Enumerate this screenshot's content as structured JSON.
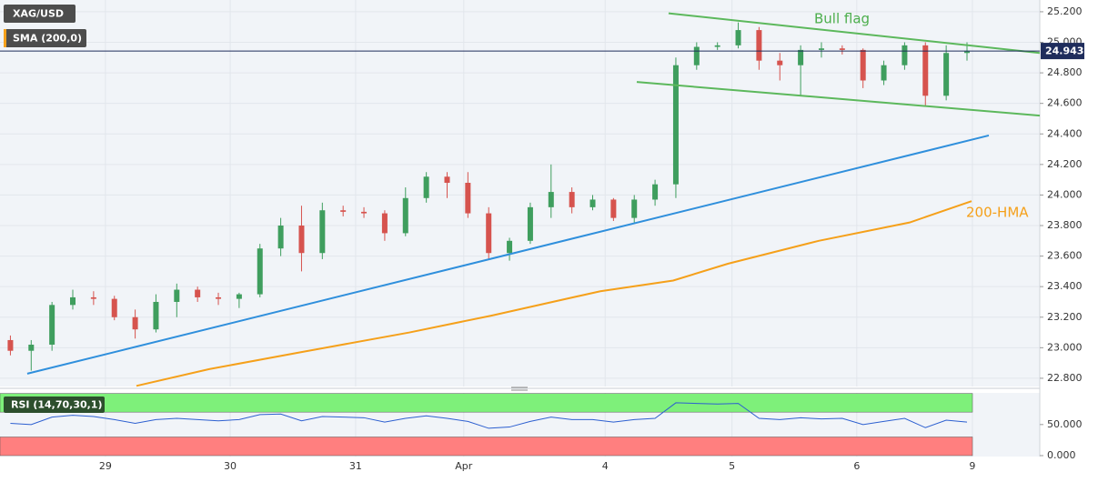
{
  "chart_data": [
    {
      "type": "candlestick",
      "title": "XAG/USD",
      "indicator": "SMA (200,0)",
      "up_color": "#3f9e5e",
      "down_color": "#d6534e",
      "open": [
        23.05,
        22.98,
        23.02,
        23.28,
        23.33,
        23.32,
        23.2,
        23.12,
        23.3,
        23.38,
        23.33,
        23.32,
        23.35,
        23.65,
        23.8,
        23.62,
        23.9,
        23.89,
        23.88,
        23.75,
        23.98,
        24.12,
        24.08,
        23.88,
        23.62,
        23.7,
        23.92,
        24.02,
        23.92,
        23.97,
        23.85,
        23.97,
        24.07,
        24.85,
        24.97,
        24.98,
        25.08,
        24.88,
        24.85,
        24.95,
        24.96,
        24.95,
        24.75,
        24.85,
        24.98,
        24.65,
        24.93
      ],
      "high": [
        23.08,
        23.05,
        23.3,
        23.38,
        23.37,
        23.34,
        23.25,
        23.35,
        23.42,
        23.4,
        23.36,
        23.36,
        23.68,
        23.85,
        23.93,
        23.95,
        23.93,
        23.92,
        23.9,
        24.05,
        24.15,
        24.15,
        24.15,
        23.92,
        23.72,
        23.95,
        24.2,
        24.05,
        24.0,
        23.98,
        24.0,
        24.1,
        24.9,
        25.0,
        25.0,
        25.13,
        25.1,
        24.93,
        24.98,
        25.0,
        24.98,
        24.96,
        24.88,
        25.0,
        25.0,
        24.98,
        25.0
      ],
      "low": [
        22.95,
        22.85,
        22.98,
        23.25,
        23.28,
        23.18,
        23.06,
        23.1,
        23.2,
        23.3,
        23.28,
        23.26,
        23.33,
        23.6,
        23.5,
        23.58,
        23.86,
        23.85,
        23.7,
        23.73,
        23.95,
        23.98,
        23.85,
        23.58,
        23.57,
        23.68,
        23.85,
        23.88,
        23.9,
        23.83,
        23.82,
        23.93,
        23.98,
        24.82,
        24.95,
        24.96,
        24.82,
        24.75,
        24.65,
        24.9,
        24.92,
        24.7,
        24.72,
        24.82,
        24.58,
        24.62,
        24.88
      ],
      "close": [
        22.98,
        23.02,
        23.28,
        23.33,
        23.32,
        23.2,
        23.12,
        23.3,
        23.38,
        23.33,
        23.32,
        23.35,
        23.65,
        23.8,
        23.62,
        23.9,
        23.89,
        23.88,
        23.75,
        23.98,
        24.12,
        24.08,
        23.88,
        23.62,
        23.7,
        23.92,
        24.02,
        23.92,
        23.97,
        23.85,
        23.97,
        24.07,
        24.85,
        24.97,
        24.98,
        25.08,
        24.88,
        24.85,
        24.95,
        24.96,
        24.95,
        24.75,
        24.85,
        24.98,
        24.65,
        24.93,
        24.94
      ],
      "last_price": 24.943,
      "last_color": "#1f2d5c",
      "lines": [
        {
          "x": [
            31.65,
            49.5
          ],
          "y": [
            25.19,
            24.93
          ],
          "color": "#5cb85c"
        },
        {
          "x": [
            30.12,
            49.5
          ],
          "y": [
            24.74,
            24.52
          ],
          "color": "#5cb85c"
        },
        {
          "x": [
            0.81,
            47.05
          ],
          "y": [
            22.83,
            24.39
          ],
          "color": "#2f8fdc"
        },
        {
          "name": "200-HMA",
          "x": [
            6.06,
            9.56,
            13.94,
            19.19,
            23.12,
            28.37,
            31.87,
            34.5,
            38.87,
            43.24,
            46.22
          ],
          "y": [
            22.75,
            22.86,
            22.97,
            23.1,
            23.21,
            23.37,
            23.44,
            23.55,
            23.7,
            23.82,
            23.96
          ],
          "color": "#f5a01a"
        }
      ],
      "annotation": "Bull flag",
      "xlim": [
        -0.5,
        49.5
      ],
      "ylim": [
        22.746,
        25.277
      ],
      "xticks": [
        {
          "value": 4.57,
          "label": "29"
        },
        {
          "value": 10.57,
          "label": "30"
        },
        {
          "value": 16.6,
          "label": "31"
        },
        {
          "value": 21.8,
          "label": "Apr"
        },
        {
          "value": 28.6,
          "label": "4"
        },
        {
          "value": 34.7,
          "label": "5"
        },
        {
          "value": 40.7,
          "label": "6"
        },
        {
          "value": 46.26,
          "label": "9"
        }
      ],
      "yticks": [
        {
          "value": 22.8,
          "label": "22.800"
        },
        {
          "value": 23.0,
          "label": "23.000"
        },
        {
          "value": 23.2,
          "label": "23.200"
        },
        {
          "value": 23.4,
          "label": "23.400"
        },
        {
          "value": 23.6,
          "label": "23.600"
        },
        {
          "value": 23.8,
          "label": "23.800"
        },
        {
          "value": 24.0,
          "label": "24.000"
        },
        {
          "value": 24.2,
          "label": "24.200"
        },
        {
          "value": 24.4,
          "label": "24.400"
        },
        {
          "value": 24.6,
          "label": "24.600"
        },
        {
          "value": 24.8,
          "label": "24.800"
        },
        {
          "value": 25.0,
          "label": "25.000"
        },
        {
          "value": 25.2,
          "label": "25.200"
        }
      ],
      "grid": true
    },
    {
      "type": "line",
      "title": "RSI (14,70,30,1)",
      "color": "#2c5fd0",
      "values": [
        52,
        50,
        62,
        65,
        63,
        58,
        52,
        58,
        60,
        58,
        56,
        58,
        66,
        67,
        56,
        63,
        62,
        61,
        54,
        60,
        64,
        60,
        55,
        44,
        46,
        55,
        62,
        58,
        58,
        54,
        58,
        60,
        85,
        84,
        83,
        84,
        60,
        58,
        61,
        59,
        60,
        50,
        55,
        60,
        45,
        57,
        54
      ],
      "bands": [
        {
          "from": 70,
          "to": 100,
          "color": "#7ef07a"
        },
        {
          "from": 0,
          "to": 30,
          "color": "#ff7f7f"
        }
      ],
      "ylim": [
        -1.5,
        101
      ],
      "yticks": [
        {
          "value": 0,
          "label": "0.000"
        },
        {
          "value": 50,
          "label": "50.000"
        }
      ]
    }
  ]
}
